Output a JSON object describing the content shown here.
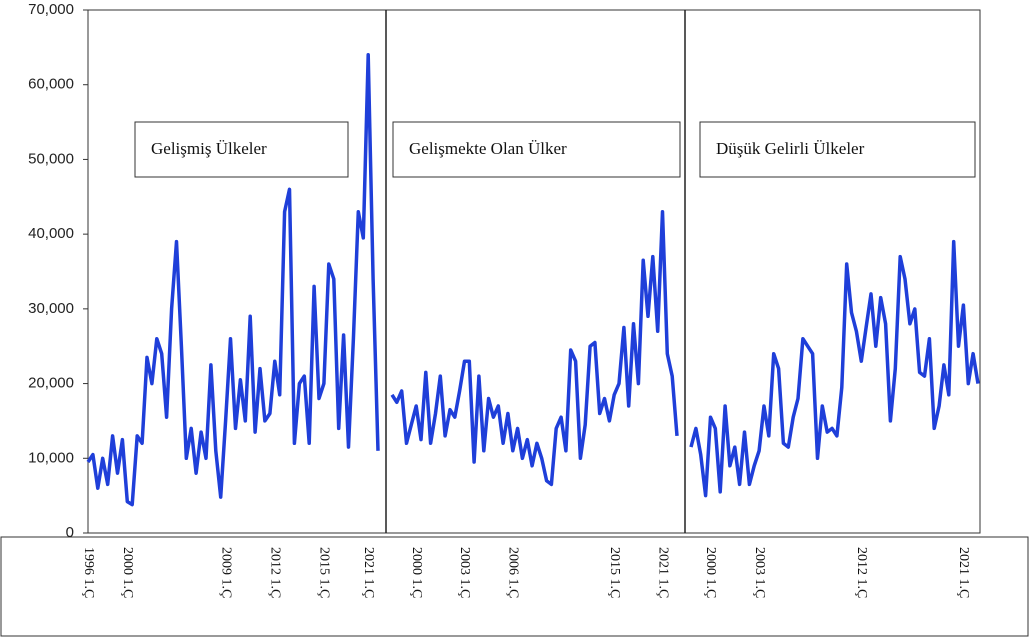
{
  "chart_data": {
    "type": "line",
    "color": "#1f3fd9",
    "ylim": [
      0,
      70000
    ],
    "yticks": [
      0,
      {
        "value": 10000,
        "label": "10,000"
      },
      {
        "value": 20000,
        "label": "20,000"
      },
      {
        "value": 30000,
        "label": "30,000"
      },
      {
        "value": 40000,
        "label": "40,000"
      },
      {
        "value": 50000,
        "label": "50,000"
      },
      {
        "value": 60000,
        "label": "60,000"
      },
      {
        "value": 70000,
        "label": "70,000"
      }
    ],
    "series": [
      {
        "name": "Gelişmiş Ülkeler",
        "categories": [
          "1996 1.Ç",
          null,
          null,
          null,
          null,
          null,
          null,
          null,
          "2000 1.Ç",
          null,
          null,
          null,
          null,
          null,
          null,
          null,
          null,
          null,
          null,
          null,
          null,
          null,
          null,
          null,
          null,
          null,
          null,
          null,
          "2009 1.Ç",
          null,
          null,
          null,
          null,
          null,
          null,
          null,
          null,
          null,
          "2012 1.Ç",
          null,
          null,
          null,
          null,
          null,
          null,
          null,
          null,
          null,
          "2015 1.Ç",
          null,
          null,
          null,
          null,
          null,
          null,
          null,
          null,
          "2021 1.Ç",
          null,
          null
        ],
        "values": [
          9500,
          10500,
          6000,
          10000,
          6500,
          13000,
          8000,
          12500,
          4200,
          3800,
          13000,
          12000,
          23500,
          20000,
          26000,
          24000,
          15500,
          30000,
          39000,
          25000,
          10000,
          14000,
          8000,
          13500,
          10000,
          22500,
          11000,
          4800,
          15000,
          26000,
          14000,
          20500,
          15000,
          29000,
          13500,
          22000,
          15000,
          16000,
          23000,
          18500,
          43000,
          46000,
          12000,
          20000,
          21000,
          12000,
          33000,
          18000,
          20000,
          36000,
          34000,
          14000,
          26500,
          11500,
          26000,
          43000,
          39500,
          64000,
          34000,
          11000
        ]
      },
      {
        "name": "Gelişmekte Olan Ülker",
        "categories": [
          null,
          null,
          null,
          null,
          null,
          "2000 1.Ç",
          null,
          null,
          null,
          null,
          null,
          null,
          null,
          null,
          null,
          "2003 1.Ç",
          null,
          null,
          null,
          null,
          null,
          null,
          null,
          null,
          null,
          "2006 1.Ç",
          null,
          null,
          null,
          null,
          null,
          null,
          null,
          null,
          null,
          null,
          null,
          null,
          null,
          null,
          null,
          null,
          null,
          null,
          null,
          null,
          "2015 1.Ç",
          null,
          null,
          null,
          null,
          null,
          null,
          null,
          null,
          null,
          "2021 1.Ç",
          null,
          null,
          null
        ],
        "values": [
          18500,
          17500,
          19000,
          12000,
          14500,
          17000,
          12500,
          21500,
          12000,
          16000,
          21000,
          13000,
          16500,
          15500,
          19000,
          23000,
          23000,
          9500,
          21000,
          11000,
          18000,
          15500,
          17000,
          12000,
          16000,
          11000,
          14000,
          10000,
          12500,
          9000,
          12000,
          10000,
          7000,
          6500,
          14000,
          15500,
          11000,
          24500,
          23000,
          10000,
          14500,
          25000,
          25500,
          16000,
          18000,
          15000,
          18500,
          20000,
          27500,
          17000,
          28000,
          20000,
          36500,
          29000,
          37000,
          27000,
          43000,
          24000,
          21000,
          13000
        ]
      },
      {
        "name": "Düşük Gelirli Ülkeler",
        "categories": [
          null,
          null,
          null,
          null,
          "2000 1.Ç",
          null,
          null,
          null,
          null,
          null,
          null,
          null,
          null,
          null,
          "2003 1.Ç",
          null,
          null,
          null,
          null,
          null,
          null,
          null,
          null,
          null,
          null,
          null,
          null,
          null,
          null,
          null,
          null,
          null,
          null,
          null,
          null,
          "2012 1.Ç",
          null,
          null,
          null,
          null,
          null,
          null,
          null,
          null,
          null,
          null,
          null,
          null,
          null,
          null,
          null,
          null,
          null,
          null,
          null,
          null,
          "2021 1.Ç",
          null,
          null,
          null
        ],
        "values": [
          11500,
          14000,
          10500,
          5000,
          15500,
          14000,
          5500,
          17000,
          9000,
          11500,
          6500,
          13500,
          6500,
          9000,
          11000,
          17000,
          13000,
          24000,
          22000,
          12000,
          11500,
          15500,
          18000,
          26000,
          25000,
          24000,
          10000,
          17000,
          13500,
          14000,
          13000,
          19500,
          36000,
          29500,
          27000,
          23000,
          27500,
          32000,
          25000,
          31500,
          28000,
          15000,
          22000,
          37000,
          34000,
          28000,
          30000,
          21500,
          21000,
          26000,
          14000,
          17000,
          22500,
          18500,
          39000,
          25000,
          30500,
          20000,
          24000,
          20000
        ]
      }
    ]
  }
}
